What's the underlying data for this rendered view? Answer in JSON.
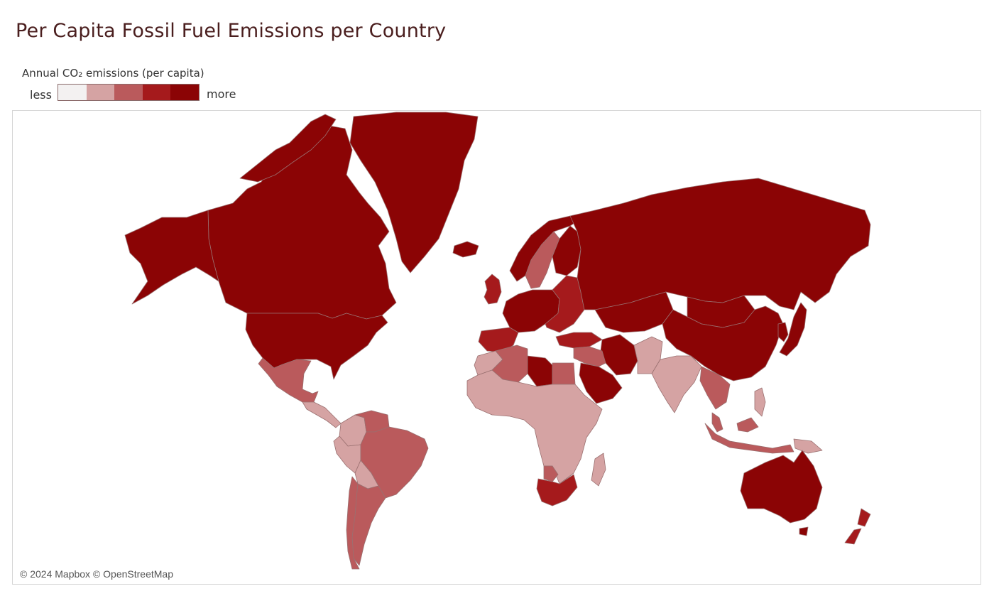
{
  "title": "Per Capita Fossil Fuel Emissions per Country",
  "legend": {
    "title": "Annual CO₂ emissions (per capita)",
    "low_label": "less",
    "high_label": "more",
    "colors": [
      "#f3f1f1",
      "#d5a3a3",
      "#ba5a5c",
      "#a51a1c",
      "#8b0405"
    ]
  },
  "map": {
    "attribution": "© 2024 Mapbox © OpenStreetMap",
    "ocean_color": "#ffffff",
    "border_color": "#9a7070"
  },
  "regions": [
    {
      "name": "Canada",
      "level": 5
    },
    {
      "name": "Greenland",
      "level": 5
    },
    {
      "name": "Alaska (United States)",
      "level": 5
    },
    {
      "name": "United States",
      "level": 5
    },
    {
      "name": "Mexico",
      "level": 3
    },
    {
      "name": "Central America",
      "level": 2
    },
    {
      "name": "Venezuela",
      "level": 3
    },
    {
      "name": "Colombia",
      "level": 2
    },
    {
      "name": "Brazil",
      "level": 3
    },
    {
      "name": "Peru",
      "level": 2
    },
    {
      "name": "Bolivia",
      "level": 2
    },
    {
      "name": "Argentina",
      "level": 3
    },
    {
      "name": "Chile",
      "level": 3
    },
    {
      "name": "Iceland",
      "level": 5
    },
    {
      "name": "Norway",
      "level": 5
    },
    {
      "name": "Sweden",
      "level": 3
    },
    {
      "name": "Finland",
      "level": 5
    },
    {
      "name": "United Kingdom",
      "level": 4
    },
    {
      "name": "Western Europe",
      "level": 5
    },
    {
      "name": "Spain and Portugal",
      "level": 4
    },
    {
      "name": "Eastern Europe",
      "level": 4
    },
    {
      "name": "Turkey",
      "level": 4
    },
    {
      "name": "Russia",
      "level": 5
    },
    {
      "name": "Kazakhstan",
      "level": 5
    },
    {
      "name": "Mongolia",
      "level": 5
    },
    {
      "name": "China",
      "level": 5
    },
    {
      "name": "Japan",
      "level": 5
    },
    {
      "name": "Korea",
      "level": 5
    },
    {
      "name": "Iran",
      "level": 5
    },
    {
      "name": "Saudi Arabia",
      "level": 5
    },
    {
      "name": "Middle East",
      "level": 3
    },
    {
      "name": "Afghanistan and Pakistan",
      "level": 2
    },
    {
      "name": "India",
      "level": 2
    },
    {
      "name": "Southeast Asia",
      "level": 3
    },
    {
      "name": "Malaysia",
      "level": 3
    },
    {
      "name": "Indonesia",
      "level": 3
    },
    {
      "name": "Philippines",
      "level": 2
    },
    {
      "name": "Papua New Guinea",
      "level": 2
    },
    {
      "name": "Australia",
      "level": 5
    },
    {
      "name": "New Zealand",
      "level": 4
    },
    {
      "name": "Algeria",
      "level": 3
    },
    {
      "name": "Libya",
      "level": 5
    },
    {
      "name": "Egypt",
      "level": 3
    },
    {
      "name": "Morocco",
      "level": 2
    },
    {
      "name": "Sub-Saharan Africa",
      "level": 2
    },
    {
      "name": "Botswana",
      "level": 3
    },
    {
      "name": "South Africa",
      "level": 4
    },
    {
      "name": "Madagascar",
      "level": 2
    }
  ]
}
